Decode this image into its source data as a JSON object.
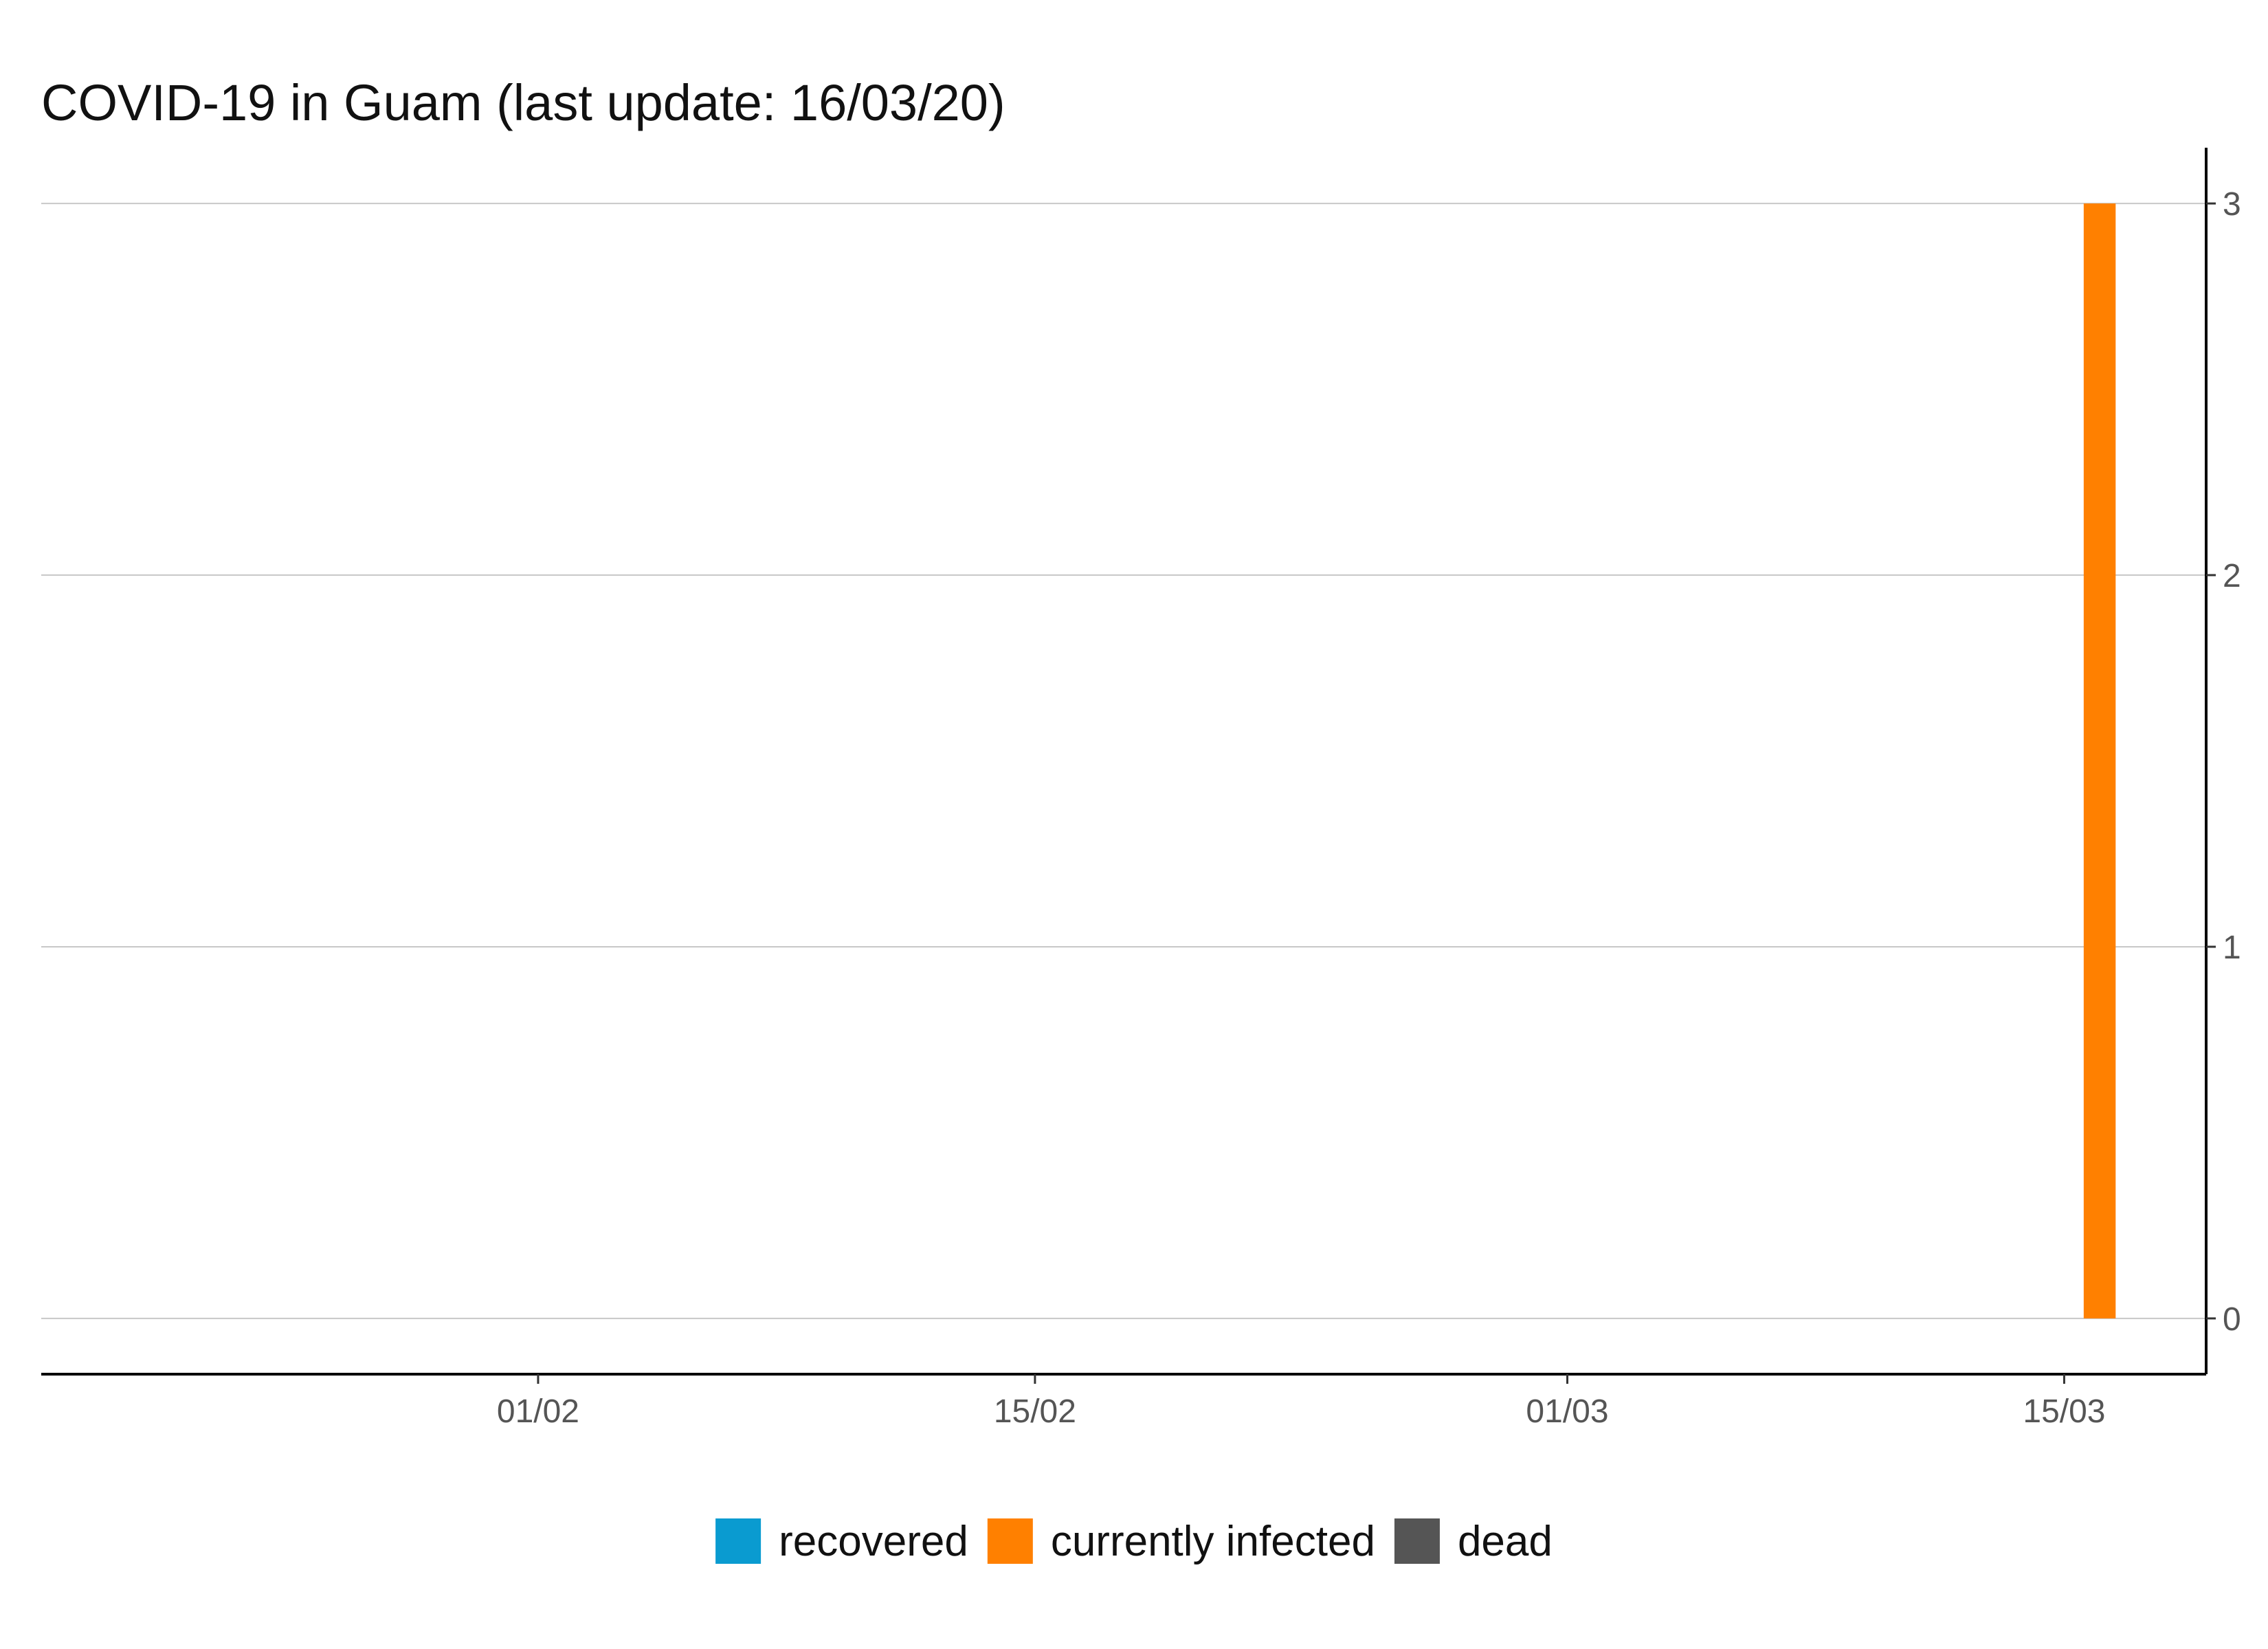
{
  "chart_data": {
    "type": "bar",
    "title": "COVID-19 in Guam (last update: 16/03/20)",
    "xlabel": "",
    "ylabel": "",
    "x_axis": {
      "type": "date",
      "range": [
        "2020-01-18",
        "2020-03-19"
      ],
      "ticks": [
        {
          "date": "2020-02-01",
          "label": "01/02"
        },
        {
          "date": "2020-02-15",
          "label": "15/02"
        },
        {
          "date": "2020-03-01",
          "label": "01/03"
        },
        {
          "date": "2020-03-15",
          "label": "15/03"
        }
      ]
    },
    "y_axis": {
      "position": "right",
      "ylim": [
        -0.15,
        3.15
      ],
      "ticks": [
        0,
        1,
        2,
        3
      ],
      "grid": true
    },
    "stacked": true,
    "series": [
      {
        "name": "recovered",
        "color": "#0a9bd0",
        "points": []
      },
      {
        "name": "currently infected",
        "color": "#ff8000",
        "points": [
          {
            "date": "2020-03-16",
            "value": 3
          }
        ]
      },
      {
        "name": "dead",
        "color": "#555555",
        "points": []
      }
    ],
    "legend": {
      "placement": "bottom",
      "entries": [
        "recovered",
        "currently infected",
        "dead"
      ]
    }
  }
}
